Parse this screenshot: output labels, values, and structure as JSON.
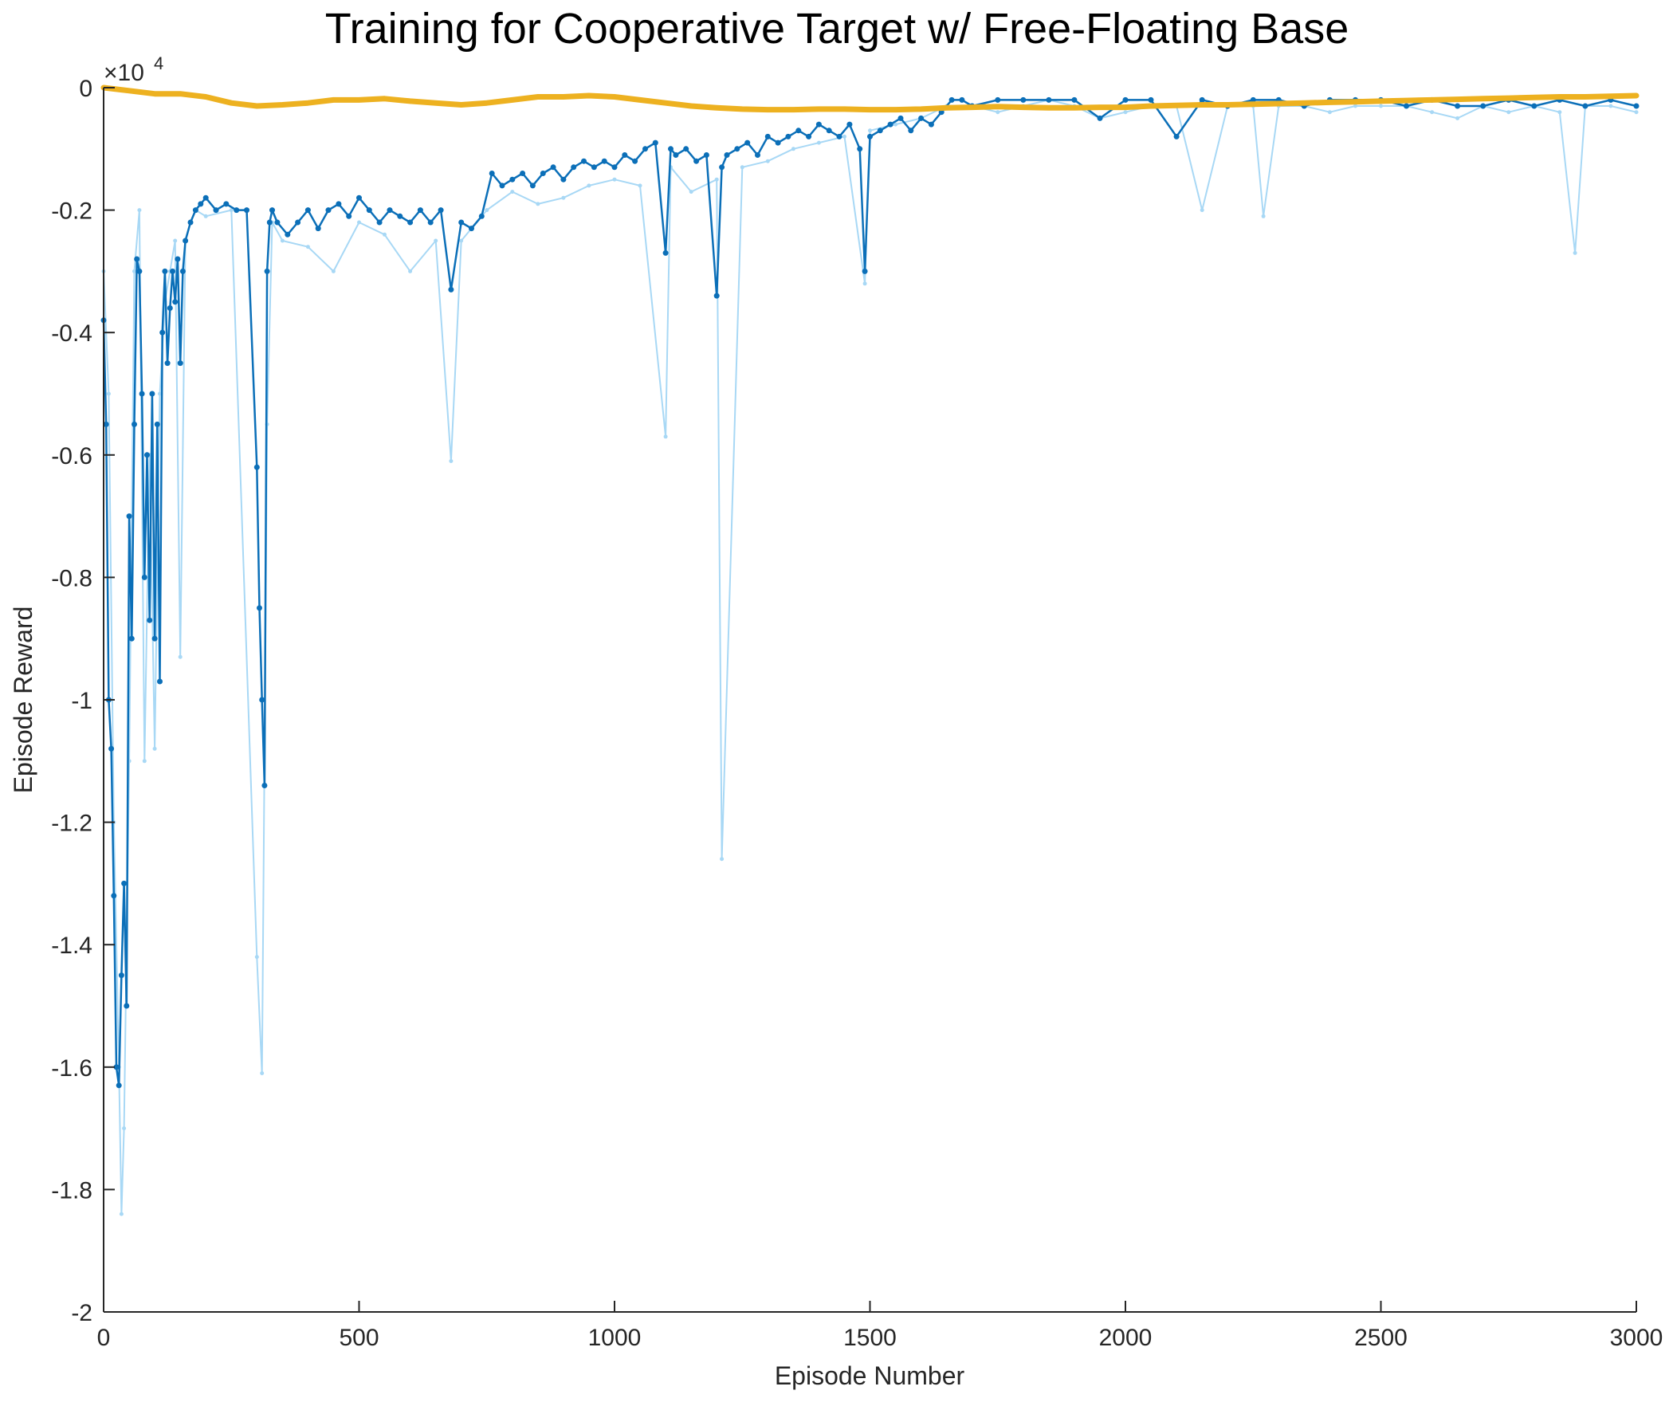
{
  "chart_data": {
    "type": "line",
    "title": "Training for Cooperative Target w/ Free-Floating Base",
    "xlabel": "Episode Number",
    "ylabel": "Episode Reward",
    "exponent_label": "×10",
    "exponent_power": "4",
    "xlim": [
      0,
      3000
    ],
    "ylim": [
      -2,
      0
    ],
    "xticks": [
      "0",
      "500",
      "1000",
      "1500",
      "2000",
      "2500",
      "3000"
    ],
    "yticks": [
      "0",
      "-0.2",
      "-0.4",
      "-0.6",
      "-0.8",
      "-1",
      "-1.2",
      "-1.4",
      "-1.6",
      "-1.8",
      "-2"
    ],
    "grid": false,
    "colors": {
      "episode_reward": "#a8d8f5",
      "average_reward": "#0b6fb8",
      "episode_q0": "#edb120",
      "axis": "#262626"
    },
    "series": [
      {
        "key": "episode_reward",
        "color": "#a8d8f5",
        "x": [
          0,
          10,
          20,
          30,
          35,
          40,
          50,
          60,
          70,
          80,
          90,
          100,
          110,
          120,
          130,
          140,
          150,
          160,
          170,
          180,
          200,
          250,
          300,
          310,
          320,
          330,
          350,
          400,
          450,
          500,
          550,
          600,
          650,
          680,
          700,
          750,
          800,
          850,
          900,
          950,
          1000,
          1050,
          1100,
          1110,
          1150,
          1200,
          1210,
          1250,
          1300,
          1350,
          1400,
          1450,
          1490,
          1500,
          1550,
          1600,
          1650,
          1700,
          1750,
          1800,
          1850,
          1900,
          1950,
          2000,
          2050,
          2100,
          2150,
          2200,
          2250,
          2270,
          2300,
          2350,
          2400,
          2450,
          2500,
          2550,
          2600,
          2650,
          2700,
          2750,
          2800,
          2850,
          2880,
          2900,
          2950,
          3000
        ],
        "y": [
          -0.3,
          -0.5,
          -1.2,
          -1.6,
          -1.84,
          -1.7,
          -1.1,
          -0.3,
          -0.2,
          -1.1,
          -0.6,
          -1.08,
          -0.5,
          -0.35,
          -0.3,
          -0.25,
          -0.93,
          -0.25,
          -0.22,
          -0.2,
          -0.21,
          -0.2,
          -1.42,
          -1.61,
          -0.55,
          -0.22,
          -0.25,
          -0.26,
          -0.3,
          -0.22,
          -0.24,
          -0.3,
          -0.25,
          -0.61,
          -0.25,
          -0.2,
          -0.17,
          -0.19,
          -0.18,
          -0.16,
          -0.15,
          -0.16,
          -0.57,
          -0.13,
          -0.17,
          -0.15,
          -1.26,
          -0.13,
          -0.12,
          -0.1,
          -0.09,
          -0.08,
          -0.32,
          -0.07,
          -0.06,
          -0.05,
          -0.03,
          -0.03,
          -0.04,
          -0.03,
          -0.02,
          -0.03,
          -0.05,
          -0.04,
          -0.03,
          -0.03,
          -0.2,
          -0.03,
          -0.03,
          -0.21,
          -0.03,
          -0.03,
          -0.04,
          -0.03,
          -0.03,
          -0.03,
          -0.04,
          -0.05,
          -0.03,
          -0.04,
          -0.03,
          -0.04,
          -0.27,
          -0.03,
          -0.03,
          -0.04
        ]
      },
      {
        "key": "average_reward",
        "color": "#0b6fb8",
        "x": [
          0,
          5,
          10,
          15,
          20,
          25,
          30,
          35,
          40,
          45,
          50,
          55,
          60,
          65,
          70,
          75,
          80,
          85,
          90,
          95,
          100,
          105,
          110,
          115,
          120,
          125,
          130,
          135,
          140,
          145,
          150,
          155,
          160,
          170,
          180,
          190,
          200,
          220,
          240,
          260,
          280,
          300,
          305,
          310,
          315,
          320,
          325,
          330,
          340,
          360,
          380,
          400,
          420,
          440,
          460,
          480,
          500,
          520,
          540,
          560,
          580,
          600,
          620,
          640,
          660,
          680,
          700,
          720,
          740,
          760,
          780,
          800,
          820,
          840,
          860,
          880,
          900,
          920,
          940,
          960,
          980,
          1000,
          1020,
          1040,
          1060,
          1080,
          1100,
          1110,
          1120,
          1140,
          1160,
          1180,
          1200,
          1210,
          1220,
          1240,
          1260,
          1280,
          1300,
          1320,
          1340,
          1360,
          1380,
          1400,
          1420,
          1440,
          1460,
          1480,
          1490,
          1500,
          1520,
          1540,
          1560,
          1580,
          1600,
          1620,
          1640,
          1660,
          1680,
          1700,
          1750,
          1800,
          1850,
          1900,
          1950,
          2000,
          2050,
          2100,
          2150,
          2200,
          2250,
          2300,
          2350,
          2400,
          2450,
          2500,
          2550,
          2600,
          2650,
          2700,
          2750,
          2800,
          2850,
          2900,
          2950,
          3000
        ],
        "y": [
          -0.38,
          -0.55,
          -1.0,
          -1.08,
          -1.32,
          -1.6,
          -1.63,
          -1.45,
          -1.3,
          -1.5,
          -0.7,
          -0.9,
          -0.55,
          -0.28,
          -0.3,
          -0.5,
          -0.8,
          -0.6,
          -0.87,
          -0.5,
          -0.9,
          -0.55,
          -0.97,
          -0.4,
          -0.3,
          -0.45,
          -0.36,
          -0.3,
          -0.35,
          -0.28,
          -0.45,
          -0.3,
          -0.25,
          -0.22,
          -0.2,
          -0.19,
          -0.18,
          -0.2,
          -0.19,
          -0.2,
          -0.2,
          -0.62,
          -0.85,
          -1.0,
          -1.14,
          -0.3,
          -0.22,
          -0.2,
          -0.22,
          -0.24,
          -0.22,
          -0.2,
          -0.23,
          -0.2,
          -0.19,
          -0.21,
          -0.18,
          -0.2,
          -0.22,
          -0.2,
          -0.21,
          -0.22,
          -0.2,
          -0.22,
          -0.2,
          -0.33,
          -0.22,
          -0.23,
          -0.21,
          -0.14,
          -0.16,
          -0.15,
          -0.14,
          -0.16,
          -0.14,
          -0.13,
          -0.15,
          -0.13,
          -0.12,
          -0.13,
          -0.12,
          -0.13,
          -0.11,
          -0.12,
          -0.1,
          -0.09,
          -0.27,
          -0.1,
          -0.11,
          -0.1,
          -0.12,
          -0.11,
          -0.34,
          -0.13,
          -0.11,
          -0.1,
          -0.09,
          -0.11,
          -0.08,
          -0.09,
          -0.08,
          -0.07,
          -0.08,
          -0.06,
          -0.07,
          -0.08,
          -0.06,
          -0.1,
          -0.3,
          -0.08,
          -0.07,
          -0.06,
          -0.05,
          -0.07,
          -0.05,
          -0.06,
          -0.04,
          -0.02,
          -0.02,
          -0.03,
          -0.02,
          -0.02,
          -0.02,
          -0.02,
          -0.05,
          -0.02,
          -0.02,
          -0.08,
          -0.02,
          -0.03,
          -0.02,
          -0.02,
          -0.03,
          -0.02,
          -0.02,
          -0.02,
          -0.03,
          -0.02,
          -0.03,
          -0.03,
          -0.02,
          -0.03,
          -0.02,
          -0.03,
          -0.02,
          -0.03
        ]
      },
      {
        "key": "episode_q0",
        "color": "#edb120",
        "x": [
          0,
          50,
          100,
          150,
          200,
          250,
          300,
          350,
          400,
          450,
          500,
          550,
          600,
          650,
          700,
          750,
          800,
          850,
          900,
          950,
          1000,
          1050,
          1100,
          1150,
          1200,
          1250,
          1300,
          1350,
          1400,
          1450,
          1500,
          1550,
          1600,
          1650,
          1700,
          1750,
          1800,
          1850,
          1900,
          1950,
          2000,
          2050,
          2100,
          2150,
          2200,
          2250,
          2300,
          2350,
          2400,
          2450,
          2500,
          2550,
          2600,
          2650,
          2700,
          2750,
          2800,
          2850,
          2900,
          2950,
          3000
        ],
        "y": [
          0.0,
          -0.005,
          -0.01,
          -0.01,
          -0.015,
          -0.025,
          -0.03,
          -0.028,
          -0.025,
          -0.02,
          -0.02,
          -0.018,
          -0.022,
          -0.025,
          -0.028,
          -0.025,
          -0.02,
          -0.015,
          -0.015,
          -0.013,
          -0.015,
          -0.02,
          -0.025,
          -0.03,
          -0.033,
          -0.035,
          -0.036,
          -0.036,
          -0.035,
          -0.035,
          -0.036,
          -0.036,
          -0.035,
          -0.033,
          -0.032,
          -0.031,
          -0.032,
          -0.033,
          -0.033,
          -0.032,
          -0.032,
          -0.03,
          -0.029,
          -0.028,
          -0.028,
          -0.027,
          -0.026,
          -0.025,
          -0.024,
          -0.023,
          -0.022,
          -0.021,
          -0.02,
          -0.019,
          -0.018,
          -0.017,
          -0.016,
          -0.015,
          -0.015,
          -0.014,
          -0.013
        ]
      }
    ]
  }
}
